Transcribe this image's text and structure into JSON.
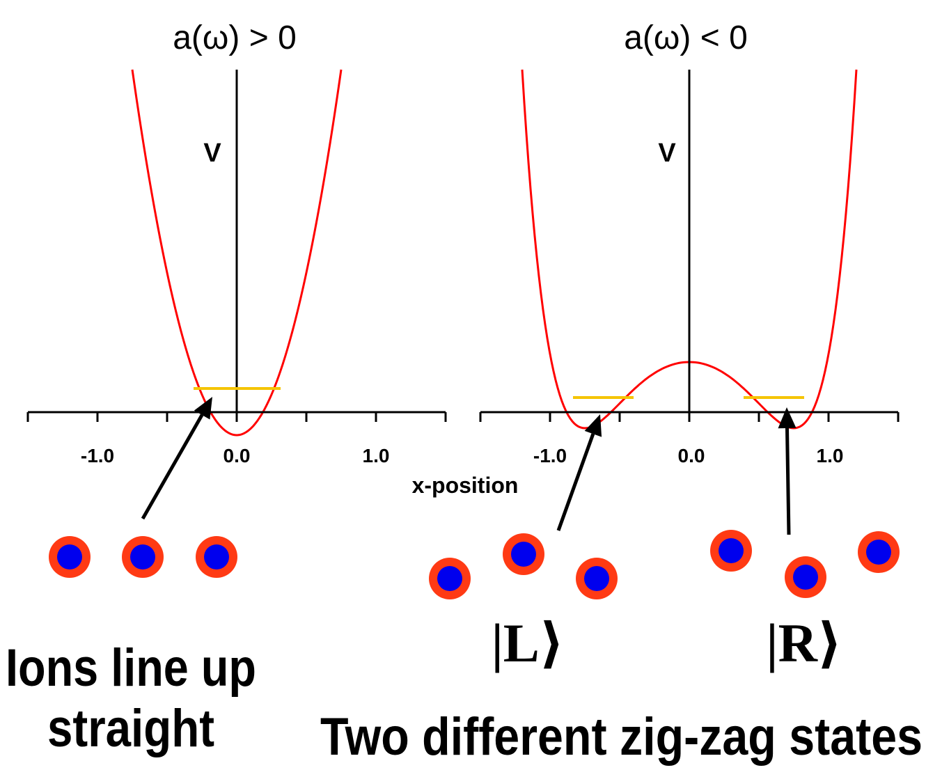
{
  "panels": [
    {
      "title": "a(ω) > 0",
      "y_label": "V",
      "ticks": [
        "-1.0",
        "0.0",
        "1.0"
      ]
    },
    {
      "title": "a(ω) < 0",
      "y_label": "V",
      "ticks": [
        "-1.0",
        "0.0",
        "1.0"
      ]
    }
  ],
  "x_label": "x-position",
  "states": [
    "|L⟩",
    "|R⟩"
  ],
  "captions": {
    "left": [
      "Ions line up",
      "straight"
    ],
    "right": "Two different zig-zag states"
  }
}
